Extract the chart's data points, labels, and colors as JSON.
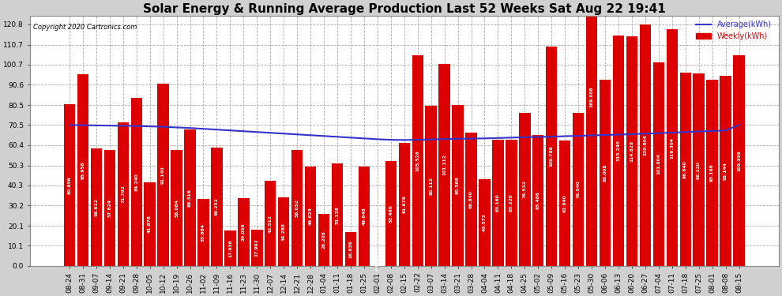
{
  "title": "Solar Energy & Running Average Production Last 52 Weeks Sat Aug 22 19:41",
  "copyright": "Copyright 2020 Cartronics.com",
  "legend_avg": "Average(kWh)",
  "legend_weekly": "Weekly(kWh)",
  "bar_color": "#dd0000",
  "avg_line_color": "#3333cc",
  "background_color": "#d0d0d0",
  "plot_bg_color": "#ffffff",
  "grid_color": "#aaaaaa",
  "categories": [
    "08-24",
    "08-31",
    "09-07",
    "09-14",
    "09-21",
    "09-28",
    "10-05",
    "10-12",
    "10-19",
    "10-26",
    "11-02",
    "11-09",
    "11-16",
    "11-23",
    "11-30",
    "12-07",
    "12-14",
    "12-21",
    "12-28",
    "01-04",
    "01-11",
    "01-18",
    "01-25",
    "02-01",
    "02-08",
    "02-15",
    "02-22",
    "03-07",
    "03-14",
    "03-21",
    "03-28",
    "04-04",
    "04-11",
    "04-18",
    "04-25",
    "05-02",
    "05-09",
    "05-16",
    "05-23",
    "05-30",
    "06-06",
    "06-13",
    "06-20",
    "06-27",
    "07-04",
    "07-11",
    "07-18",
    "07-25",
    "08-01",
    "08-08",
    "08-15"
  ],
  "weekly_values": [
    80.856,
    95.956,
    58.612,
    57.824,
    71.792,
    84.24,
    41.876,
    91.14,
    58.084,
    68.316,
    33.684,
    59.252,
    17.936,
    34.056,
    17.992,
    42.512,
    34.28,
    58.032,
    49.624,
    26.208,
    51.128,
    16.936,
    49.648,
    0.096,
    52.46,
    61.676,
    105.528,
    80.112,
    101.112,
    80.568,
    66.84,
    43.572,
    63.16,
    63.22,
    76.532,
    65.486,
    109.788,
    62.94,
    76.54,
    169.008,
    93.008,
    115.24,
    114.828,
    120.804,
    101.804,
    118.304,
    96.64,
    96.12,
    93.168,
    95.144,
    105.356
  ],
  "avg_values": [
    70.5,
    70.4,
    70.3,
    70.2,
    70.1,
    70.0,
    69.8,
    69.6,
    69.3,
    69.0,
    68.6,
    68.2,
    67.8,
    67.4,
    67.0,
    66.6,
    66.2,
    65.8,
    65.4,
    65.0,
    64.6,
    64.2,
    63.8,
    63.4,
    63.1,
    63.0,
    63.1,
    63.3,
    63.5,
    63.6,
    63.7,
    63.8,
    64.0,
    64.2,
    64.4,
    64.5,
    64.7,
    64.9,
    65.1,
    65.3,
    65.5,
    65.7,
    65.9,
    66.2,
    66.4,
    66.7,
    67.0,
    67.3,
    67.5,
    67.8,
    70.5
  ],
  "ylim": [
    0,
    125
  ],
  "yticks": [
    0.0,
    10.1,
    20.1,
    30.2,
    40.3,
    50.3,
    60.4,
    70.5,
    80.5,
    90.6,
    100.7,
    110.7,
    120.8
  ],
  "title_fontsize": 11,
  "tick_fontsize": 6.5,
  "bar_label_fontsize": 4.2
}
